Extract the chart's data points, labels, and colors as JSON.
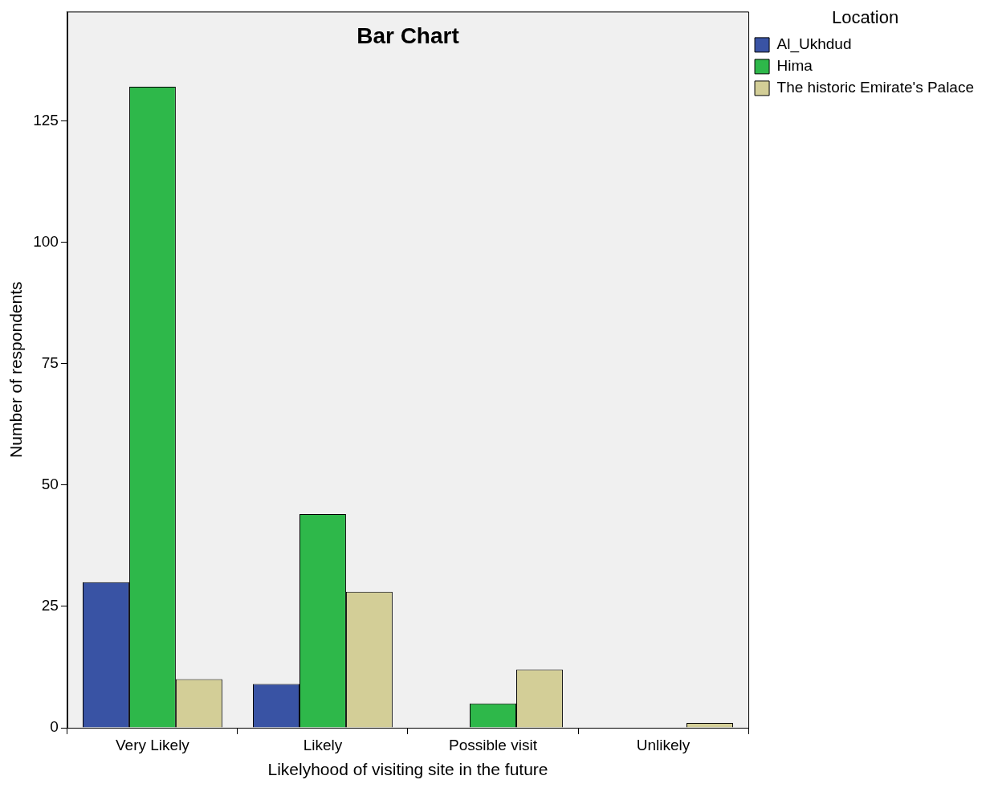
{
  "chart_data": {
    "type": "bar",
    "title": "Bar Chart",
    "xlabel": "Likelyhood of visiting site in the future",
    "ylabel": "Number of respondents",
    "legend_title": "Location",
    "categories": [
      "Very Likely",
      "Likely",
      "Possible visit",
      "Unlikely"
    ],
    "series": [
      {
        "name": "Al_Ukhdud",
        "color": "#3953a4",
        "values": [
          30,
          9,
          0,
          0
        ]
      },
      {
        "name": "Hima",
        "color": "#2eb84a",
        "values": [
          132,
          44,
          5,
          0
        ]
      },
      {
        "name": "The historic Emirate's Palace",
        "color": "#d3ce97",
        "values": [
          10,
          28,
          12,
          1
        ]
      }
    ],
    "ylim": [
      0,
      147.5
    ],
    "yticks": [
      0,
      25,
      50,
      75,
      100,
      125
    ],
    "grid": false,
    "legend": "right"
  }
}
